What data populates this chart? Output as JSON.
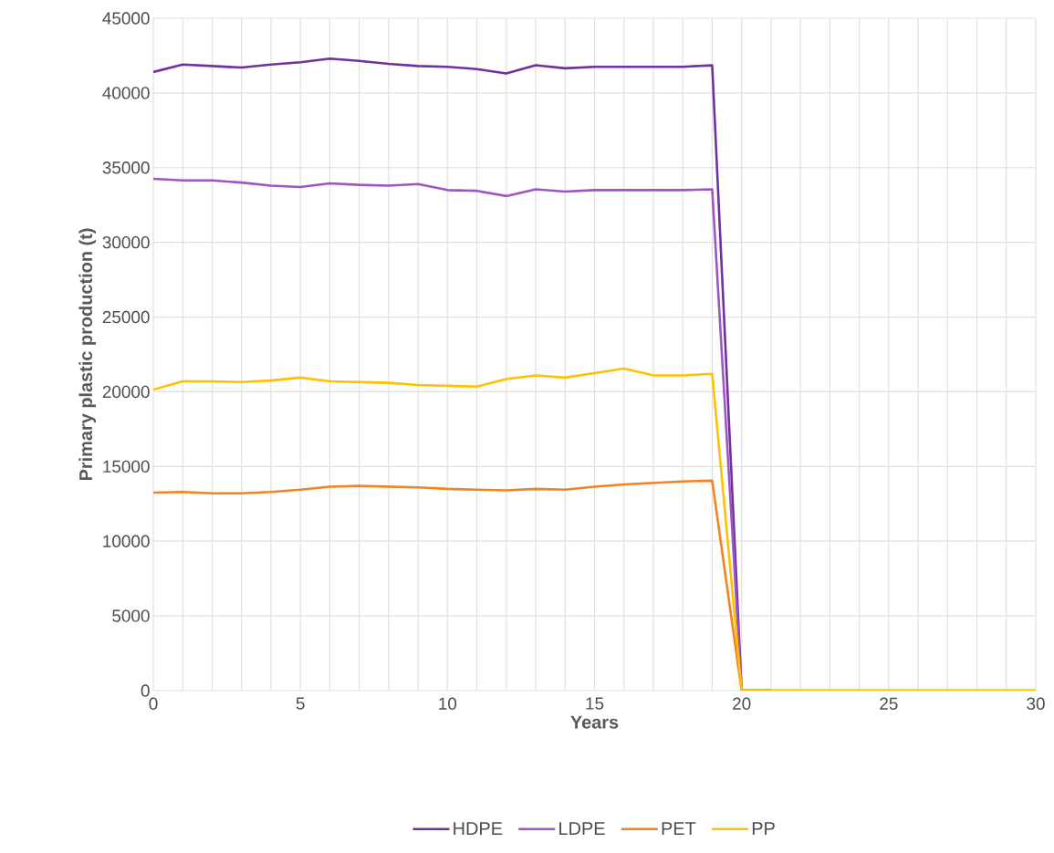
{
  "chart_data": {
    "type": "line",
    "xlabel": "Years",
    "ylabel": "Primary plastic production (t)",
    "x": [
      0,
      1,
      2,
      3,
      4,
      5,
      6,
      7,
      8,
      9,
      10,
      11,
      12,
      13,
      14,
      15,
      16,
      17,
      18,
      19,
      20,
      21,
      22,
      23,
      24,
      25,
      26,
      27,
      28,
      29,
      30
    ],
    "series": [
      {
        "name": "HDPE",
        "color": "#7030a0",
        "values": [
          41400,
          41900,
          41800,
          41700,
          41900,
          42050,
          42300,
          42150,
          41950,
          41800,
          41750,
          41600,
          41300,
          41850,
          41650,
          41750,
          41750,
          41750,
          41750,
          41850,
          0,
          0,
          null,
          null,
          null,
          null,
          null,
          null,
          null,
          null,
          null
        ]
      },
      {
        "name": "LDPE",
        "color": "#9e55c4",
        "values": [
          34250,
          34150,
          34150,
          34000,
          33800,
          33700,
          33950,
          33850,
          33800,
          33900,
          33500,
          33450,
          33100,
          33550,
          33400,
          33500,
          33500,
          33500,
          33500,
          33550,
          0,
          0,
          null,
          null,
          null,
          null,
          null,
          null,
          null,
          null,
          null
        ]
      },
      {
        "name": "PET",
        "color": "#f58220",
        "values": [
          13250,
          13300,
          13200,
          13200,
          13300,
          13450,
          13650,
          13700,
          13650,
          13600,
          13500,
          13450,
          13400,
          13500,
          13450,
          13650,
          13800,
          13900,
          14000,
          14050,
          0,
          0,
          0,
          0,
          0,
          0,
          0,
          0,
          0,
          0,
          0
        ]
      },
      {
        "name": "PP",
        "color": "#ffc000",
        "values": [
          20150,
          20700,
          20700,
          20650,
          20750,
          20950,
          20700,
          20650,
          20600,
          20450,
          20400,
          20350,
          20850,
          21100,
          20950,
          21250,
          21550,
          21100,
          21100,
          21200,
          0,
          0,
          0,
          0,
          0,
          0,
          0,
          0,
          0,
          0,
          0
        ]
      }
    ],
    "xlim": [
      0,
      30
    ],
    "xticks": [
      0,
      5,
      10,
      15,
      20,
      25,
      30
    ],
    "ylim": [
      0,
      45000
    ],
    "yticks": [
      0,
      5000,
      10000,
      15000,
      20000,
      25000,
      30000,
      35000,
      40000,
      45000
    ],
    "grid": true,
    "legend": "bottom",
    "marker": "none",
    "line_style": "solid"
  }
}
